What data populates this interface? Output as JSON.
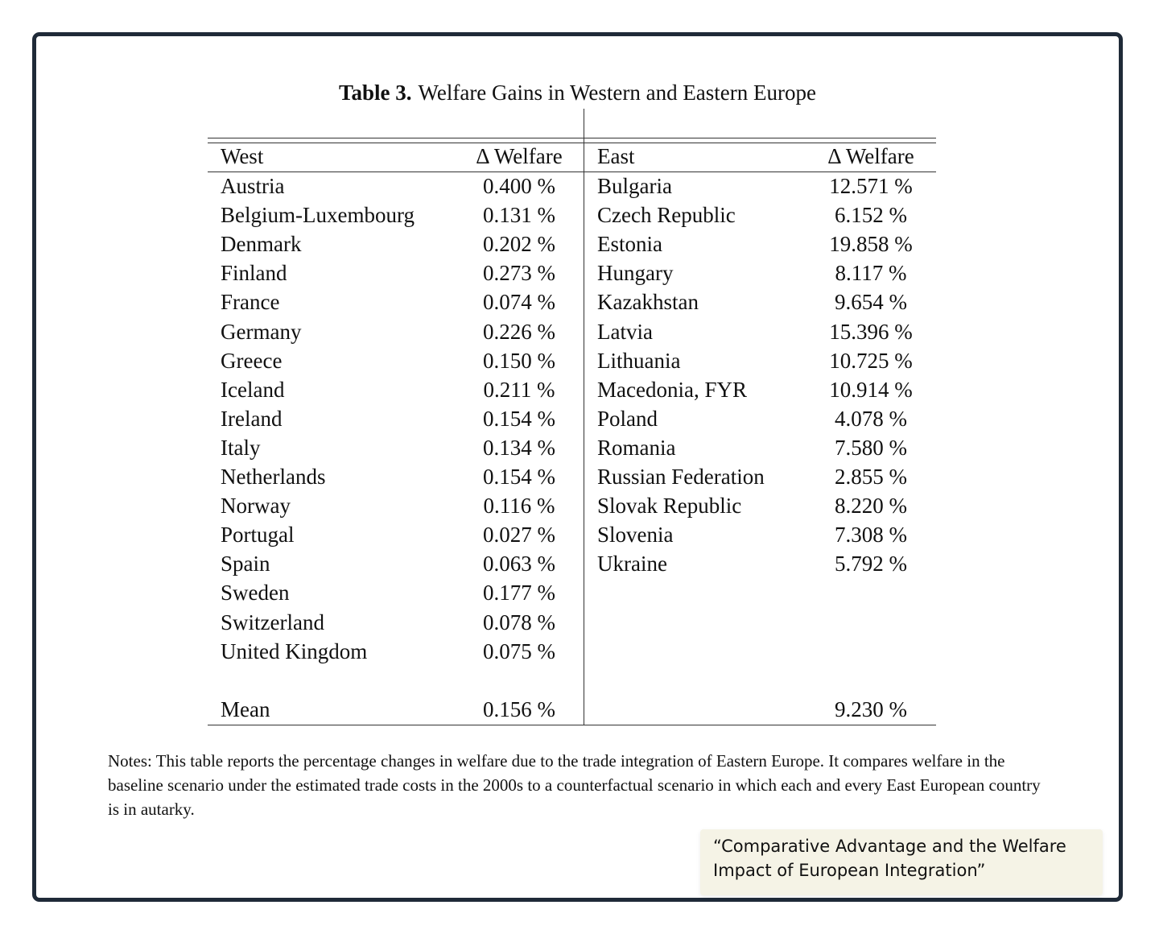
{
  "title": {
    "label": "Table 3.",
    "text": "Welfare Gains in Western and Eastern Europe"
  },
  "table": {
    "headers": [
      "West",
      "Δ Welfare",
      "East",
      "Δ Welfare"
    ],
    "west": [
      [
        "Austria",
        "0.400 %"
      ],
      [
        "Belgium-Luxembourg",
        "0.131 %"
      ],
      [
        "Denmark",
        "0.202 %"
      ],
      [
        "Finland",
        "0.273 %"
      ],
      [
        "France",
        "0.074 %"
      ],
      [
        "Germany",
        "0.226 %"
      ],
      [
        "Greece",
        "0.150 %"
      ],
      [
        "Iceland",
        "0.211 %"
      ],
      [
        "Ireland",
        "0.154 %"
      ],
      [
        "Italy",
        "0.134 %"
      ],
      [
        "Netherlands",
        "0.154 %"
      ],
      [
        "Norway",
        "0.116 %"
      ],
      [
        "Portugal",
        "0.027 %"
      ],
      [
        "Spain",
        "0.063 %"
      ],
      [
        "Sweden",
        "0.177 %"
      ],
      [
        "Switzerland",
        "0.078 %"
      ],
      [
        "United Kingdom",
        "0.075 %"
      ]
    ],
    "east": [
      [
        "Bulgaria",
        "12.571 %"
      ],
      [
        "Czech Republic",
        "6.152 %"
      ],
      [
        "Estonia",
        "19.858 %"
      ],
      [
        "Hungary",
        "8.117 %"
      ],
      [
        "Kazakhstan",
        "9.654 %"
      ],
      [
        "Latvia",
        "15.396 %"
      ],
      [
        "Lithuania",
        "10.725 %"
      ],
      [
        "Macedonia, FYR",
        "10.914 %"
      ],
      [
        "Poland",
        "4.078 %"
      ],
      [
        "Romania",
        "7.580 %"
      ],
      [
        "Russian Federation",
        "2.855 %"
      ],
      [
        "Slovak Republic",
        "8.220 %"
      ],
      [
        "Slovenia",
        "7.308 %"
      ],
      [
        "Ukraine",
        "5.792 %"
      ]
    ],
    "mean": {
      "label": "Mean",
      "west": "0.156 %",
      "east": "9.230 %"
    }
  },
  "notes": "Notes: This table reports the percentage changes in welfare due to the trade integration of Eastern Europe. It compares welfare in the baseline scenario under the estimated trade costs in the 2000s to a counterfactual scenario in which each and every East European country is in autarky.",
  "caption": "“Comparative Advantage and the Welfare Impact of European Integration”"
}
